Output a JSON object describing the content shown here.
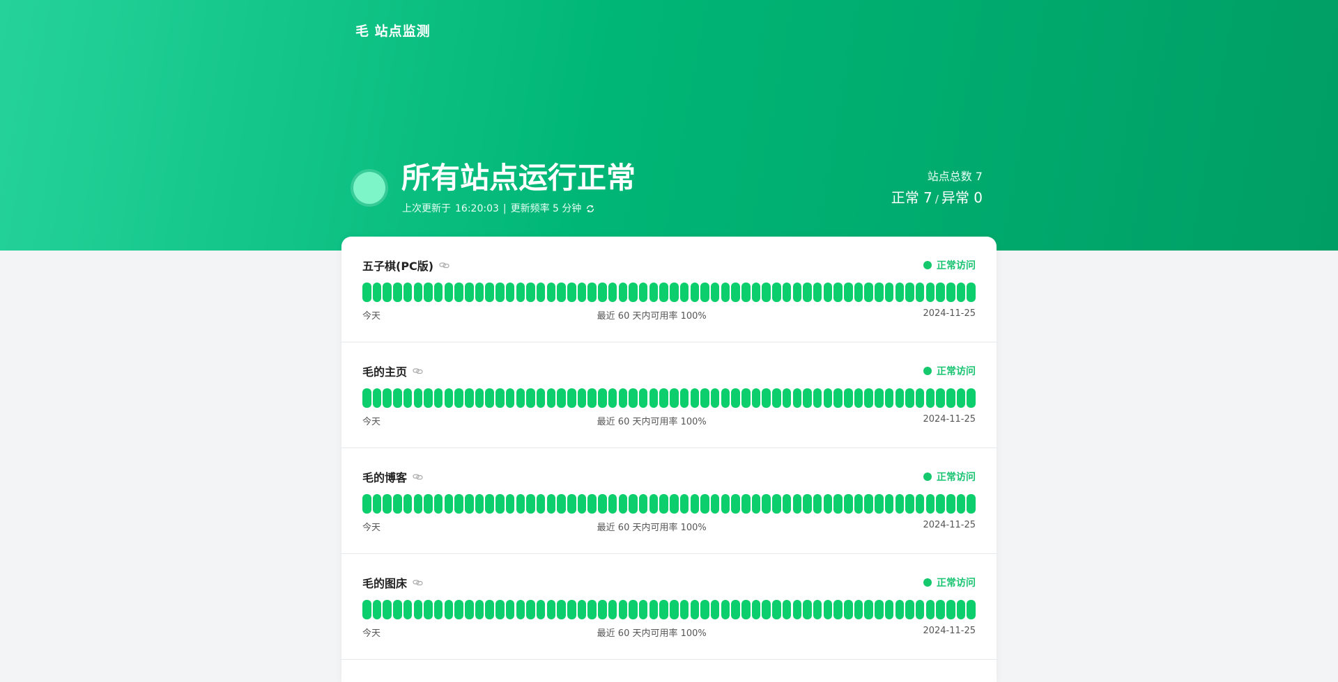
{
  "header": {
    "brand": "毛 站点监测",
    "status_title": "所有站点运行正常",
    "updated_prefix": "上次更新于",
    "updated_time": "16:20:03",
    "separator": "|",
    "frequency_text": "更新频率 5 分钟",
    "refresh_icon": "refresh-icon",
    "total_label": "站点总数 7",
    "normal_label": "正常 7",
    "abnormal_label": "异常 0",
    "slash": "/"
  },
  "colors": {
    "hero_start": "#25d39a",
    "hero_end": "#009e65",
    "bar_green": "#0dce6c",
    "status_text": "#1bc473"
  },
  "bar_count": 60,
  "sites": [
    {
      "name": "五子棋(PC版)",
      "status": "正常访问",
      "left": "今天",
      "middle": "最近 60 天内可用率 100%",
      "right": "2024-11-25",
      "uptime": 1.0
    },
    {
      "name": "毛的主页",
      "status": "正常访问",
      "left": "今天",
      "middle": "最近 60 天内可用率 100%",
      "right": "2024-11-25",
      "uptime": 1.0
    },
    {
      "name": "毛的博客",
      "status": "正常访问",
      "left": "今天",
      "middle": "最近 60 天内可用率 100%",
      "right": "2024-11-25",
      "uptime": 1.0
    },
    {
      "name": "毛的图床",
      "status": "正常访问",
      "left": "今天",
      "middle": "最近 60 天内可用率 100%",
      "right": "2024-11-25",
      "uptime": 1.0
    }
  ]
}
